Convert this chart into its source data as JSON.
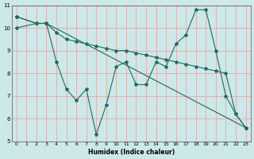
{
  "xlabel": "Humidex (Indice chaleur)",
  "bg_color": "#cce8e8",
  "grid_color": "#ee9999",
  "line_color": "#1a6e60",
  "xlim": [
    -0.5,
    23.5
  ],
  "ylim": [
    5,
    11
  ],
  "xticks": [
    0,
    1,
    2,
    3,
    4,
    5,
    6,
    7,
    8,
    9,
    10,
    11,
    12,
    13,
    14,
    15,
    16,
    17,
    18,
    19,
    20,
    21,
    22,
    23
  ],
  "yticks": [
    5,
    6,
    7,
    8,
    9,
    10,
    11
  ],
  "series": [
    {
      "x": [
        0,
        2,
        3,
        4,
        5,
        6,
        7,
        8,
        9,
        10,
        11,
        12,
        13,
        14,
        15,
        16,
        17,
        18,
        19,
        20,
        21,
        22,
        23
      ],
      "y": [
        10.0,
        10.2,
        10.2,
        8.5,
        7.3,
        6.8,
        7.3,
        5.3,
        6.6,
        8.3,
        8.5,
        7.5,
        7.5,
        8.5,
        8.3,
        9.3,
        9.7,
        10.8,
        10.8,
        9.0,
        7.0,
        6.2,
        5.6
      ]
    },
    {
      "x": [
        0,
        2,
        3,
        23
      ],
      "y": [
        10.5,
        10.2,
        10.2,
        5.6
      ]
    },
    {
      "x": [
        0,
        2,
        3,
        4,
        5,
        6,
        7,
        8,
        9,
        10,
        11,
        12,
        13,
        14,
        15,
        16,
        17,
        18,
        19,
        20,
        21,
        22,
        23
      ],
      "y": [
        10.5,
        10.2,
        10.2,
        9.8,
        9.5,
        9.4,
        9.3,
        9.2,
        9.1,
        9.0,
        9.0,
        8.9,
        8.8,
        8.7,
        8.6,
        8.5,
        8.4,
        8.3,
        8.2,
        8.1,
        8.0,
        6.2,
        5.6
      ]
    }
  ]
}
